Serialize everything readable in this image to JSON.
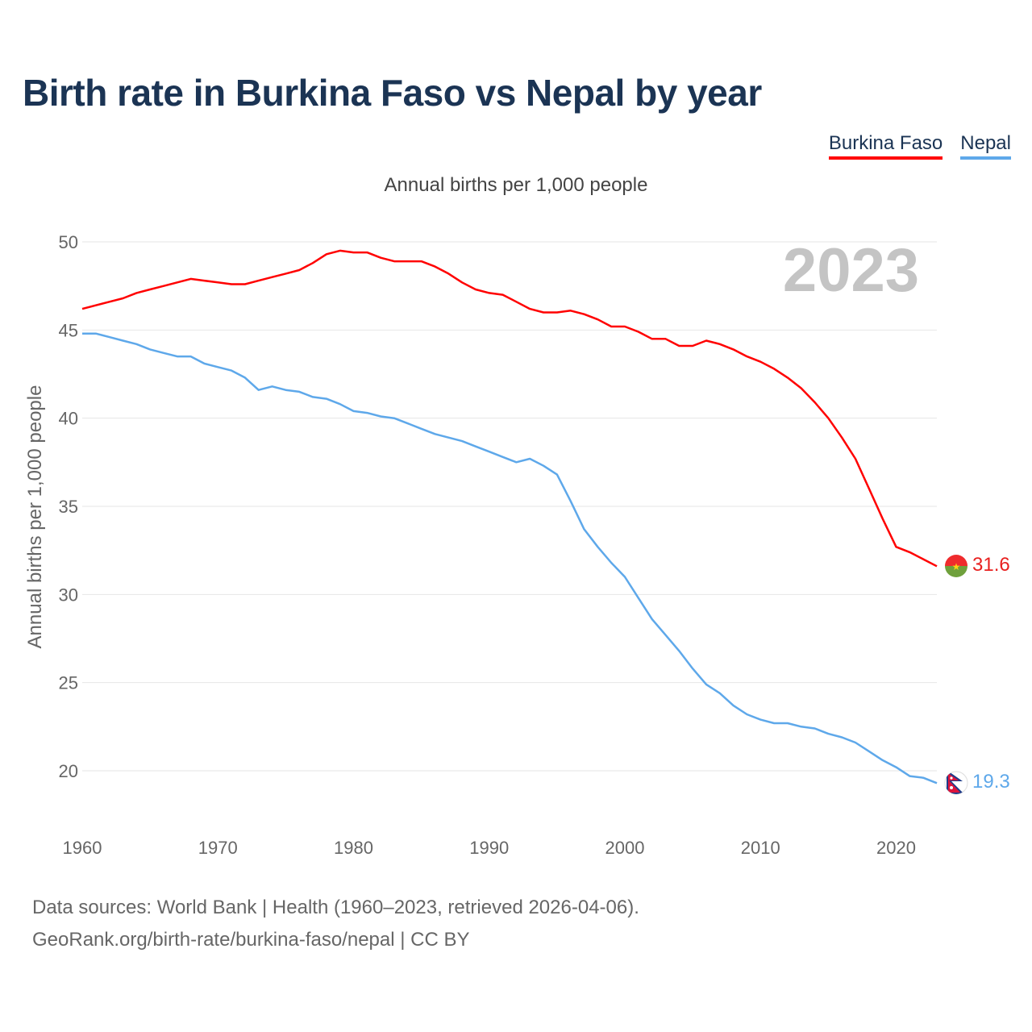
{
  "title": "Birth rate in Burkina Faso vs Nepal by year",
  "subtitle": "Annual births per 1,000 people",
  "legend": [
    {
      "label": "Burkina Faso",
      "color": "#ff0000"
    },
    {
      "label": "Nepal",
      "color": "#5ea8ea"
    }
  ],
  "source": {
    "line1": "Data sources: World Bank | Health (1960–2023, retrieved 2026-04-06).",
    "line2": "GeoRank.org/birth-rate/burkina-faso/nepal | CC BY"
  },
  "chart_data": {
    "type": "line",
    "title": "Birth rate in Burkina Faso vs Nepal by year",
    "ylabel": "Annual births per 1,000 people",
    "xlabel": "",
    "xlim": [
      1960,
      2023
    ],
    "ylim": [
      17.5,
      51
    ],
    "yticks": [
      20,
      25,
      30,
      35,
      40,
      45,
      50
    ],
    "xticks": [
      1960,
      1970,
      1980,
      1990,
      2000,
      2010,
      2020
    ],
    "grid": true,
    "year_label": "2023",
    "x": [
      1960,
      1961,
      1962,
      1963,
      1964,
      1965,
      1966,
      1967,
      1968,
      1969,
      1970,
      1971,
      1972,
      1973,
      1974,
      1975,
      1976,
      1977,
      1978,
      1979,
      1980,
      1981,
      1982,
      1983,
      1984,
      1985,
      1986,
      1987,
      1988,
      1989,
      1990,
      1991,
      1992,
      1993,
      1994,
      1995,
      1996,
      1997,
      1998,
      1999,
      2000,
      2001,
      2002,
      2003,
      2004,
      2005,
      2006,
      2007,
      2008,
      2009,
      2010,
      2011,
      2012,
      2013,
      2014,
      2015,
      2016,
      2017,
      2018,
      2019,
      2020,
      2021,
      2022,
      2023
    ],
    "series": [
      {
        "name": "Burkina Faso",
        "color": "#ff0000",
        "end_label": "31.6",
        "values": [
          46.2,
          46.4,
          46.6,
          46.8,
          47.1,
          47.3,
          47.5,
          47.7,
          47.9,
          47.8,
          47.7,
          47.6,
          47.6,
          47.8,
          48.0,
          48.2,
          48.4,
          48.8,
          49.3,
          49.5,
          49.4,
          49.4,
          49.1,
          48.9,
          48.9,
          48.9,
          48.6,
          48.2,
          47.7,
          47.3,
          47.1,
          47.0,
          46.6,
          46.2,
          46.0,
          46.0,
          46.1,
          45.9,
          45.6,
          45.2,
          45.2,
          44.9,
          44.5,
          44.5,
          44.1,
          44.1,
          44.4,
          44.2,
          43.9,
          43.5,
          43.2,
          42.8,
          42.3,
          41.7,
          40.9,
          40.0,
          38.9,
          37.7,
          36.0,
          34.3,
          32.7,
          32.4,
          32.0,
          31.6
        ]
      },
      {
        "name": "Nepal",
        "color": "#5ea8ea",
        "end_label": "19.3",
        "values": [
          44.8,
          44.8,
          44.6,
          44.4,
          44.2,
          43.9,
          43.7,
          43.5,
          43.5,
          43.1,
          42.9,
          42.7,
          42.3,
          41.6,
          41.8,
          41.6,
          41.5,
          41.2,
          41.1,
          40.8,
          40.4,
          40.3,
          40.1,
          40.0,
          39.7,
          39.4,
          39.1,
          38.9,
          38.7,
          38.4,
          38.1,
          37.8,
          37.5,
          37.7,
          37.3,
          36.8,
          35.3,
          33.7,
          32.7,
          31.8,
          31.0,
          29.8,
          28.6,
          27.7,
          26.8,
          25.8,
          24.9,
          24.4,
          23.7,
          23.2,
          22.9,
          22.7,
          22.7,
          22.5,
          22.4,
          22.1,
          21.9,
          21.6,
          21.1,
          20.6,
          20.2,
          19.7,
          19.6,
          19.3
        ]
      }
    ]
  }
}
